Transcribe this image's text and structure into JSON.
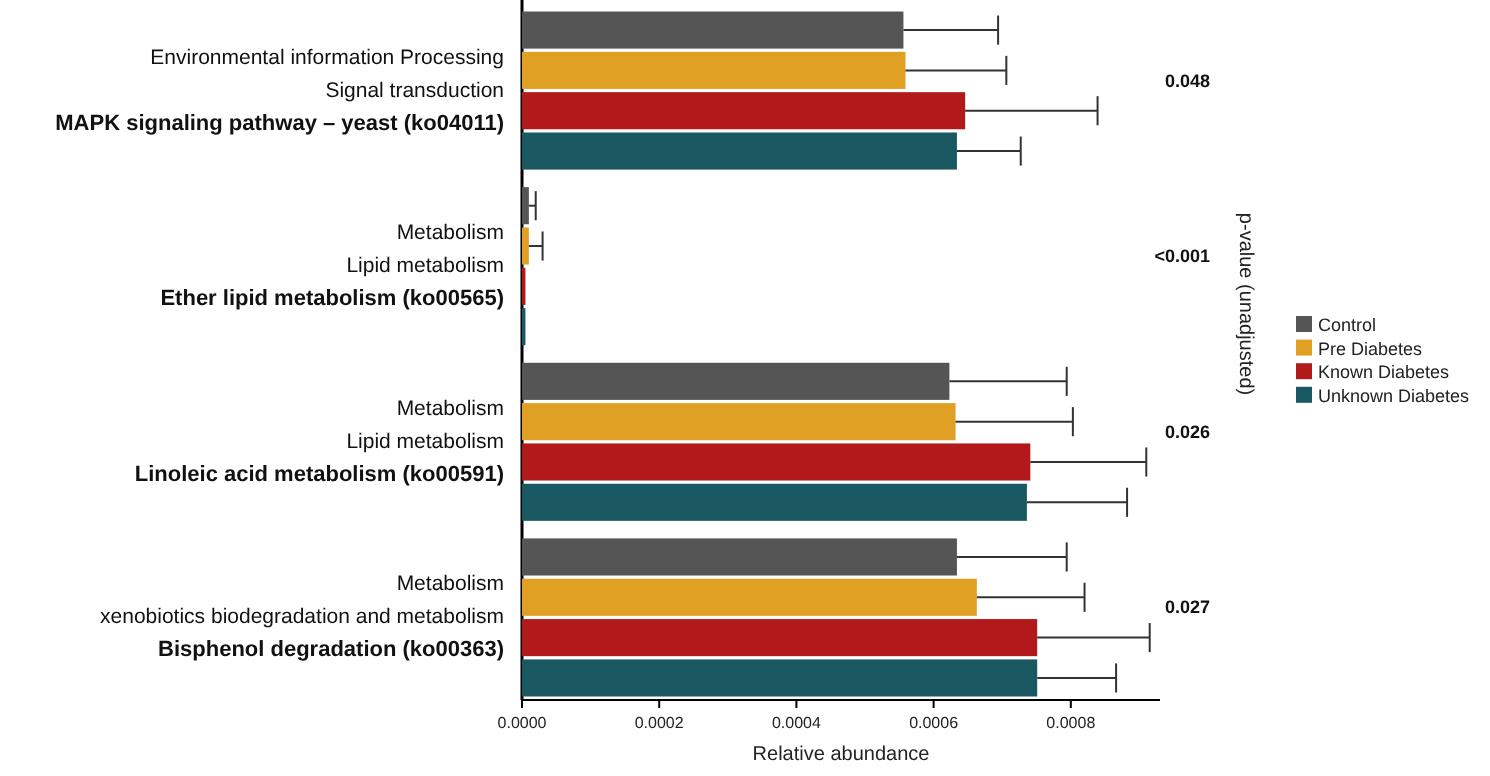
{
  "chart_data": {
    "type": "bar",
    "orientation": "horizontal",
    "categories": [
      "Environmental information Processing\nSignal transduction\nMAPK signaling pathway – yeast (ko04011)",
      "Metabolism\nLipid metabolism\nEther lipid metabolism (ko00565)",
      "Metabolism\nLipid metabolism\nLinoleic acid metabolism (ko00591)",
      "Metabolism\nxenobiotics biodegradation and metabolism\nBisphenol degradation (ko00363)"
    ],
    "series": [
      {
        "name": "Control",
        "color": "#555555",
        "values": [
          0.000556,
          1e-05,
          0.000623,
          0.000634
        ],
        "errors": [
          [
            0.000556,
            0.000694
          ],
          [
            1e-05,
            2e-05
          ],
          [
            0.000623,
            0.000794
          ],
          [
            0.000634,
            0.000794
          ]
        ]
      },
      {
        "name": "Pre Diabetes",
        "color": "#e0a023",
        "values": [
          0.000559,
          1e-05,
          0.000632,
          0.000663
        ],
        "errors": [
          [
            0.000559,
            0.000706
          ],
          [
            1e-05,
            3e-05
          ],
          [
            0.000632,
            0.000803
          ],
          [
            0.000663,
            0.00082
          ]
        ]
      },
      {
        "name": "Known Diabetes",
        "color": "#b2191b",
        "values": [
          0.000646,
          5e-06,
          0.000741,
          0.000751
        ],
        "errors": [
          [
            0.000646,
            0.000839
          ],
          null,
          [
            0.000741,
            0.00091
          ],
          [
            0.000751,
            0.000915
          ]
        ]
      },
      {
        "name": "Unknown Diabetes",
        "color": "#1b5962",
        "values": [
          0.000634,
          5e-06,
          0.000736,
          0.000751
        ],
        "errors": [
          [
            0.000634,
            0.000727
          ],
          null,
          [
            0.000736,
            0.000882
          ],
          [
            0.000751,
            0.000866
          ]
        ]
      }
    ],
    "xlabel": "Relative abundance",
    "y2label": "p-value (unadjusted)",
    "annotations": [
      "0.048",
      "<0.001",
      "0.026",
      "0.027"
    ],
    "xlim": [
      0,
      0.00093
    ],
    "xticks": [
      {
        "value": 0,
        "label": "0.0000"
      },
      {
        "value": 0.0002,
        "label": "0.0002"
      },
      {
        "value": 0.0004,
        "label": "0.0004"
      },
      {
        "value": 0.0006,
        "label": "0.0006"
      },
      {
        "value": 0.0008,
        "label": "0.0008"
      }
    ],
    "legend": "right",
    "grid": false
  }
}
